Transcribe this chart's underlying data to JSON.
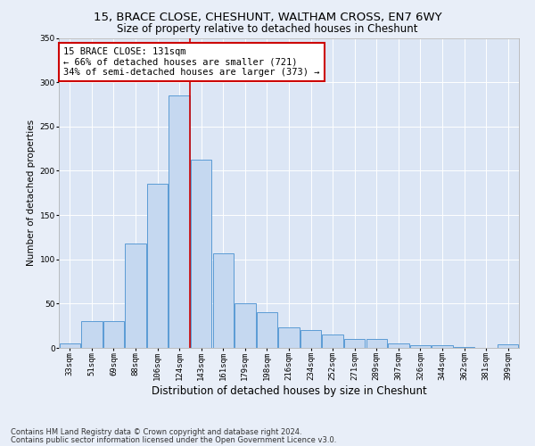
{
  "title1": "15, BRACE CLOSE, CHESHUNT, WALTHAM CROSS, EN7 6WY",
  "title2": "Size of property relative to detached houses in Cheshunt",
  "xlabel": "Distribution of detached houses by size in Cheshunt",
  "ylabel": "Number of detached properties",
  "categories": [
    "33sqm",
    "51sqm",
    "69sqm",
    "88sqm",
    "106sqm",
    "124sqm",
    "143sqm",
    "161sqm",
    "179sqm",
    "198sqm",
    "216sqm",
    "234sqm",
    "252sqm",
    "271sqm",
    "289sqm",
    "307sqm",
    "326sqm",
    "344sqm",
    "362sqm",
    "381sqm",
    "399sqm"
  ],
  "values": [
    5,
    30,
    30,
    118,
    185,
    285,
    213,
    107,
    50,
    40,
    23,
    20,
    15,
    10,
    10,
    5,
    3,
    3,
    1,
    0,
    4
  ],
  "bar_color": "#c5d8f0",
  "bar_edge_color": "#5b9bd5",
  "background_color": "#dce6f5",
  "fig_background_color": "#e8eef8",
  "vline_color": "#cc0000",
  "annotation_text": "15 BRACE CLOSE: 131sqm\n← 66% of detached houses are smaller (721)\n34% of semi-detached houses are larger (373) →",
  "annotation_box_color": "#ffffff",
  "annotation_box_edge": "#cc0000",
  "ylim": [
    0,
    350
  ],
  "yticks": [
    0,
    50,
    100,
    150,
    200,
    250,
    300,
    350
  ],
  "footer1": "Contains HM Land Registry data © Crown copyright and database right 2024.",
  "footer2": "Contains public sector information licensed under the Open Government Licence v3.0.",
  "title1_fontsize": 9.5,
  "title2_fontsize": 8.5,
  "xlabel_fontsize": 8.5,
  "ylabel_fontsize": 7.5,
  "tick_fontsize": 6.5,
  "annotation_fontsize": 7.5,
  "footer_fontsize": 6.0,
  "vline_pos": 5.5
}
